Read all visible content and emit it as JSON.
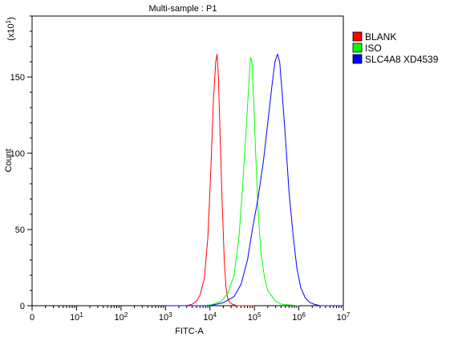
{
  "chart_data": {
    "type": "line",
    "title": "Multi-sample : P1",
    "xlabel": "FITC-A",
    "ylabel": "Count",
    "y_multiplier_label": "(x10",
    "y_multiplier_exp": "1",
    "x_scale": "log",
    "xlim": [
      1,
      10000000
    ],
    "ylim": [
      0,
      190
    ],
    "x_ticks": [
      {
        "value": 1,
        "label": "0",
        "exp": ""
      },
      {
        "value": 10,
        "label": "10",
        "exp": "1"
      },
      {
        "value": 100,
        "label": "10",
        "exp": "2"
      },
      {
        "value": 1000,
        "label": "10",
        "exp": "3"
      },
      {
        "value": 10000,
        "label": "10",
        "exp": "4"
      },
      {
        "value": 100000,
        "label": "10",
        "exp": "5"
      },
      {
        "value": 1000000,
        "label": "10",
        "exp": "6"
      },
      {
        "value": 10000000,
        "label": "10",
        "exp": "7"
      }
    ],
    "y_ticks": [
      0,
      50,
      100,
      150
    ],
    "grid": false,
    "legend_position": "top-right",
    "series": [
      {
        "name": "BLANK",
        "color": "#ff0000",
        "x": [
          1000,
          3000,
          4000,
          5000,
          6000,
          7500,
          9000,
          10500,
          12000,
          13500,
          14500,
          15500,
          17000,
          19000,
          21000,
          23000,
          25000,
          28000,
          32000,
          40000,
          100000
        ],
        "y": [
          0,
          0,
          1,
          3,
          7,
          18,
          45,
          90,
          135,
          160,
          165,
          150,
          110,
          65,
          30,
          12,
          5,
          2,
          1,
          0,
          0
        ]
      },
      {
        "name": "ISO",
        "color": "#00ff00",
        "x": [
          1000,
          8000,
          12000,
          18000,
          25000,
          35000,
          45000,
          55000,
          65000,
          75000,
          82000,
          88000,
          95000,
          105000,
          120000,
          140000,
          170000,
          200000,
          250000,
          300000,
          400000,
          1000000
        ],
        "y": [
          0,
          0,
          1,
          3,
          8,
          20,
          45,
          80,
          115,
          145,
          163,
          160,
          140,
          105,
          65,
          35,
          18,
          10,
          6,
          3,
          1,
          0
        ]
      },
      {
        "name": "SLC4A8 XD4539",
        "color": "#0000ff",
        "x": [
          1000,
          10000,
          20000,
          35000,
          50000,
          70000,
          90000,
          120000,
          160000,
          200000,
          250000,
          290000,
          330000,
          370000,
          420000,
          500000,
          600000,
          750000,
          900000,
          1100000,
          1400000,
          1800000,
          2200000,
          3000000,
          10000000
        ],
        "y": [
          0,
          0,
          2,
          6,
          14,
          30,
          50,
          70,
          95,
          120,
          145,
          160,
          165,
          160,
          140,
          110,
          75,
          45,
          25,
          12,
          5,
          2,
          1,
          0,
          0
        ]
      }
    ]
  }
}
